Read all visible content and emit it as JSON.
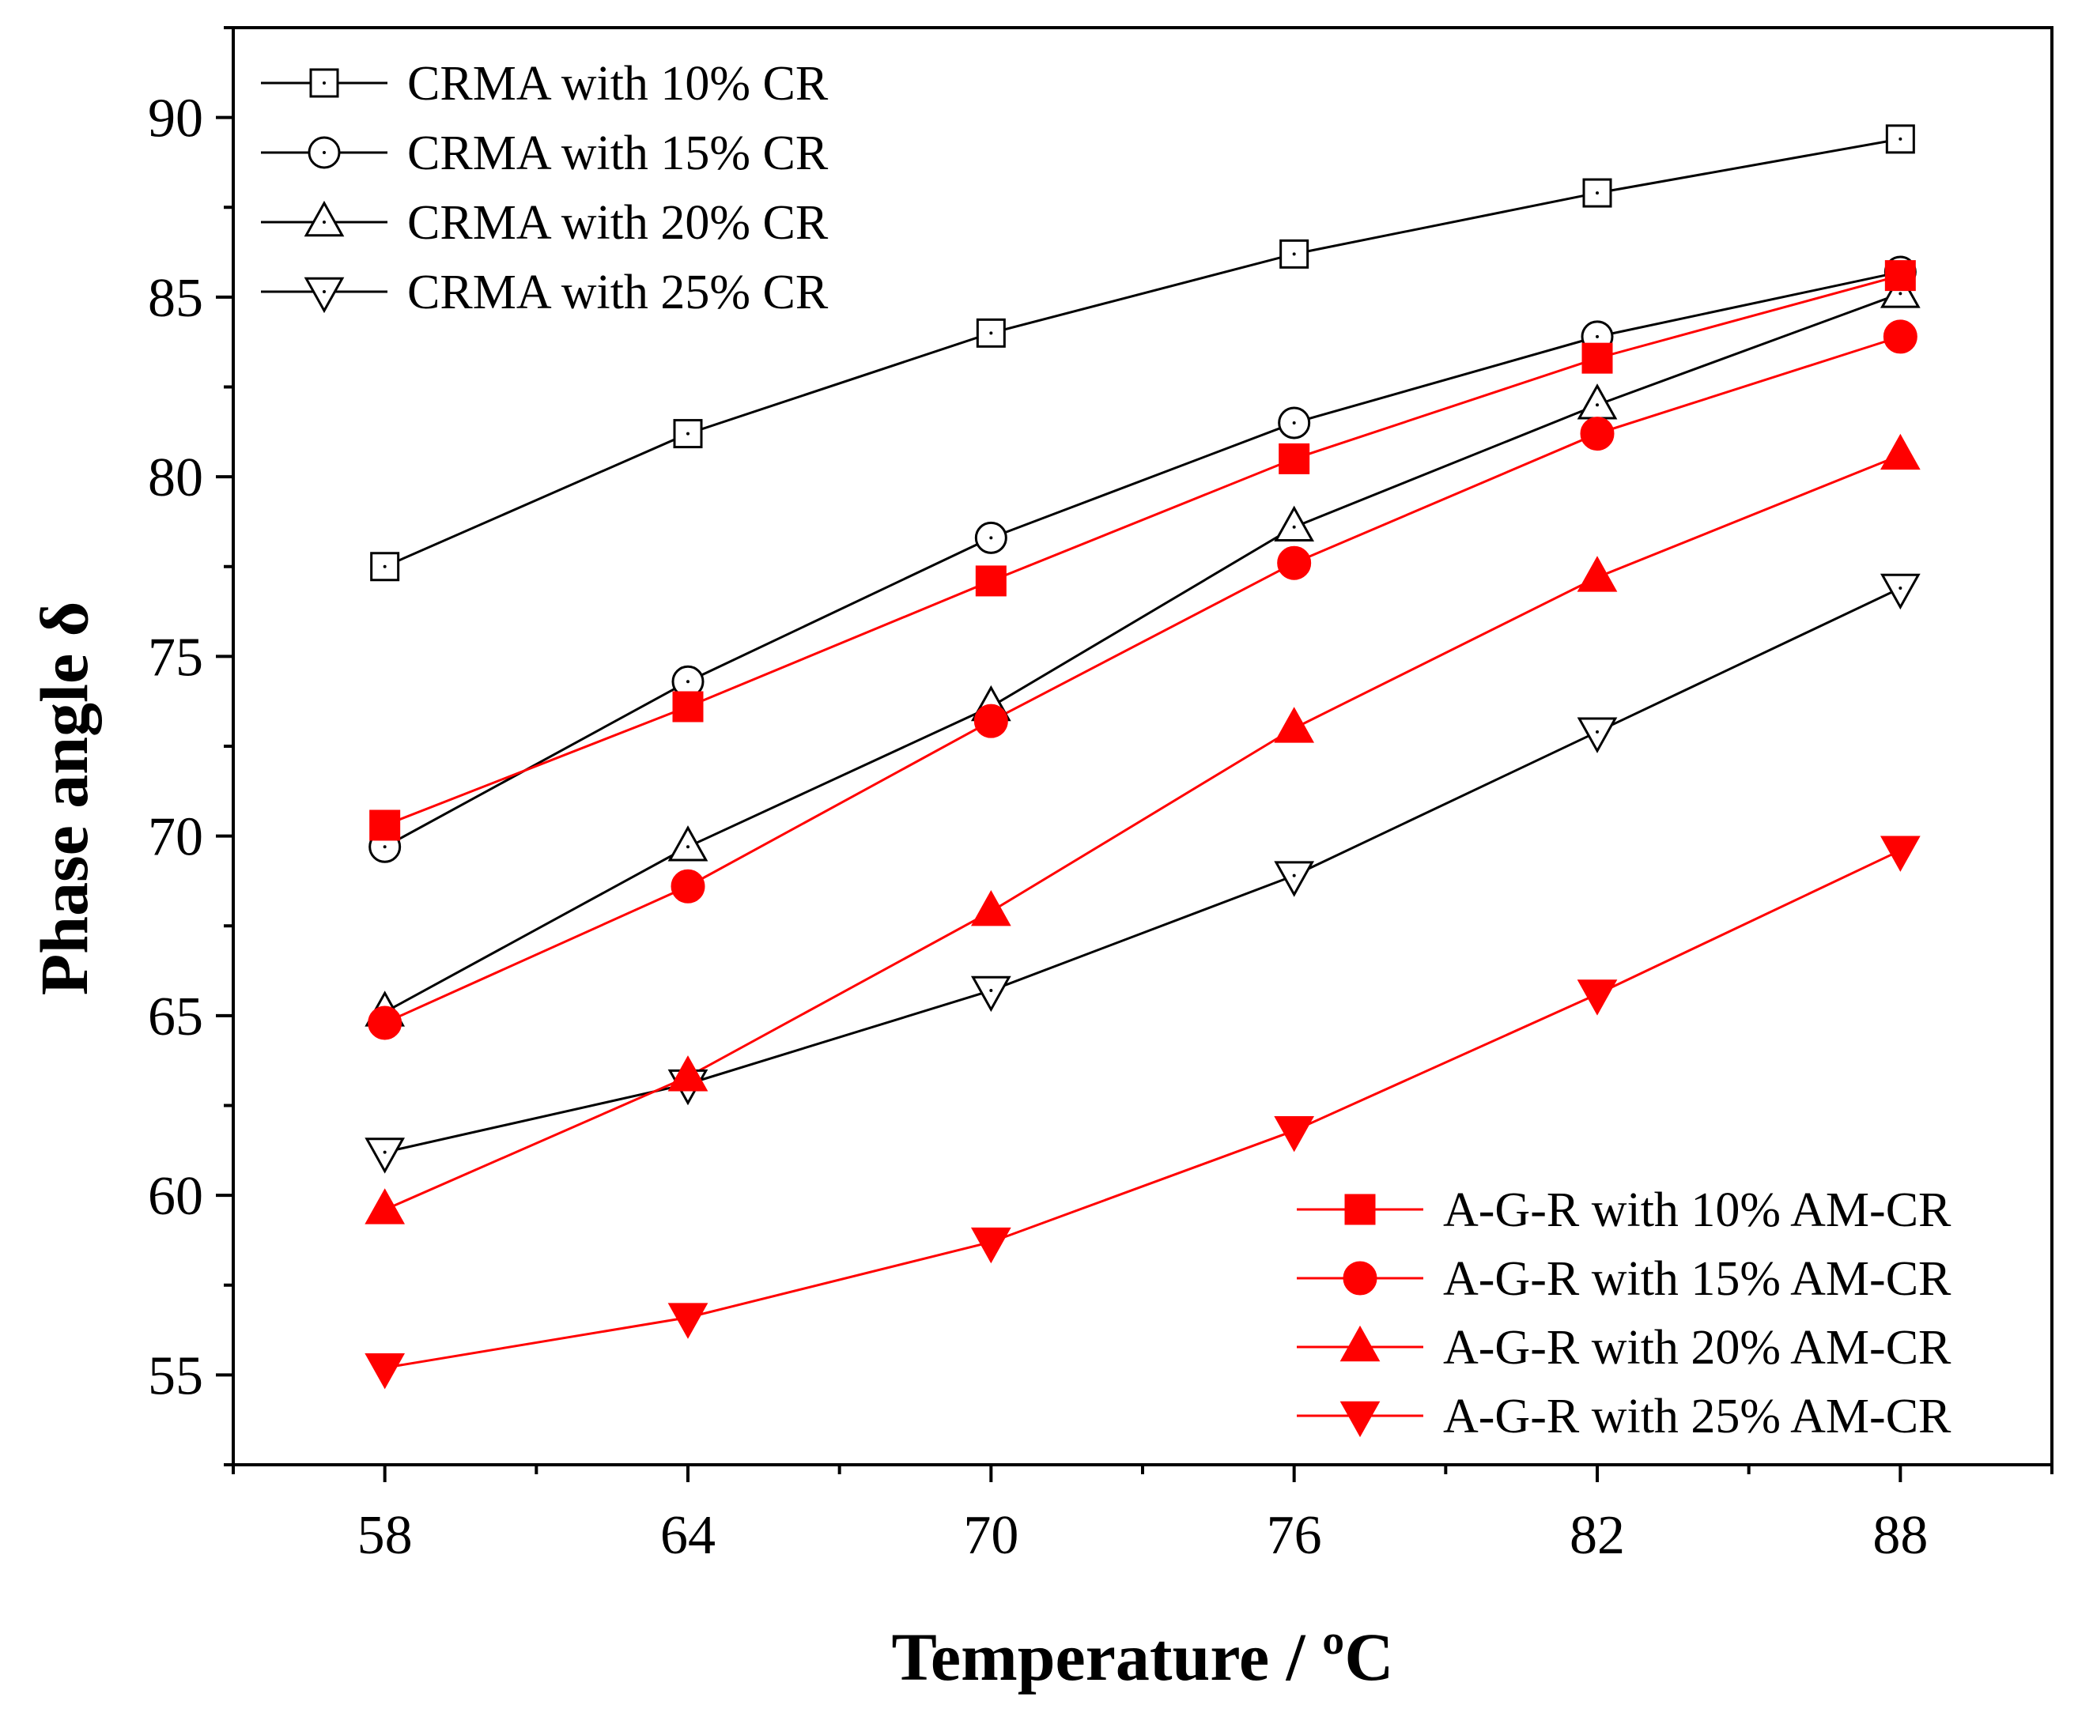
{
  "chart_data": {
    "type": "line",
    "title": "",
    "xlabel": "Temperature / ºC",
    "ylabel": "Phase angle δ",
    "x": [
      58,
      64,
      70,
      76,
      82,
      88
    ],
    "xticks": [
      "58",
      "64",
      "70",
      "76",
      "82",
      "88"
    ],
    "yticks": [
      "55",
      "60",
      "65",
      "70",
      "75",
      "80",
      "85",
      "90"
    ],
    "xlim": [
      55,
      91
    ],
    "ylim": [
      52.5,
      92.5
    ],
    "legend_positions": [
      "top-left",
      "bottom-right"
    ],
    "colors": {
      "black": "#000000",
      "red": "#ff0000"
    },
    "series": [
      {
        "name": "CRMA with 10% CR",
        "color": "#000000",
        "marker": "square-open",
        "values": [
          77.5,
          81.2,
          84.0,
          86.2,
          87.9,
          89.4
        ]
      },
      {
        "name": "CRMA with 15% CR",
        "color": "#000000",
        "marker": "circle-open",
        "values": [
          69.7,
          74.3,
          78.3,
          81.5,
          83.9,
          85.7
        ]
      },
      {
        "name": "CRMA with 20% CR",
        "color": "#000000",
        "marker": "triangle-up-open",
        "values": [
          65.1,
          69.7,
          73.6,
          78.6,
          82.0,
          85.1
        ]
      },
      {
        "name": "CRMA with 25% CR",
        "color": "#000000",
        "marker": "triangle-down-open",
        "values": [
          61.2,
          63.1,
          65.7,
          68.9,
          72.9,
          76.9
        ]
      },
      {
        "name": "A-G-R with 10%  AM-CR",
        "color": "#ff0000",
        "marker": "square-filled",
        "values": [
          70.3,
          73.6,
          77.1,
          80.5,
          83.3,
          85.6
        ]
      },
      {
        "name": "A-G-R with 15%  AM-CR",
        "color": "#ff0000",
        "marker": "circle-filled",
        "values": [
          64.8,
          68.6,
          73.2,
          77.6,
          81.2,
          83.9
        ]
      },
      {
        "name": "A-G-R with 20%  AM-CR",
        "color": "#ff0000",
        "marker": "triangle-up-filled",
        "values": [
          59.6,
          63.3,
          67.9,
          73.0,
          77.2,
          80.6
        ]
      },
      {
        "name": "A-G-R with 25%  AM-CR",
        "color": "#ff0000",
        "marker": "triangle-down-filled",
        "values": [
          55.2,
          56.6,
          58.7,
          61.8,
          65.6,
          69.6
        ]
      }
    ]
  }
}
